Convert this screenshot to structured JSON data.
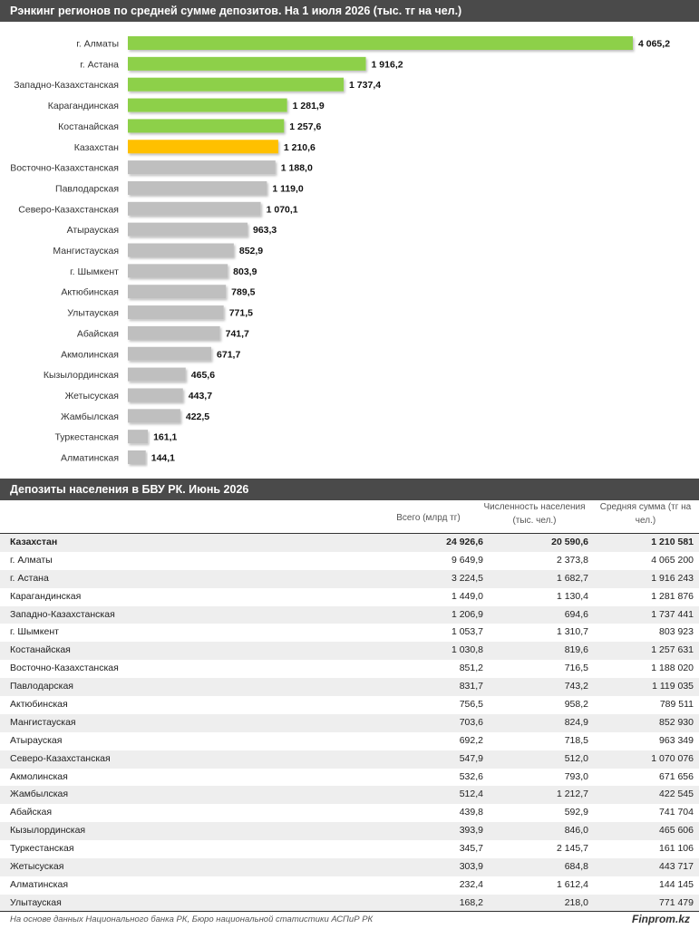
{
  "chart_title": "Рэнкинг регионов по средней сумме депозитов. На 1 июля 2026 (тыс. тг на чел.)",
  "chart_data": {
    "type": "bar",
    "orientation": "horizontal",
    "title": "Рэнкинг регионов по средней сумме депозитов. На 1 июля 2026 (тыс. тг на чел.)",
    "categories": [
      "г. Алматы",
      "г. Астана",
      "Западно-Казахстанская",
      "Карагандинская",
      "Костанайская",
      "Казахстан",
      "Восточно-Казахстанская",
      "Павлодарская",
      "Северо-Казахстанская",
      "Атырауская",
      "Мангистауская",
      "г. Шымкент",
      "Актюбинская",
      "Улытауская",
      "Абайская",
      "Акмолинская",
      "Кызылординская",
      "Жетысуская",
      "Жамбылская",
      "Туркестанская",
      "Алматинская"
    ],
    "values": [
      4065.2,
      1916.2,
      1737.4,
      1281.9,
      1257.6,
      1210.6,
      1188.0,
      1119.0,
      1070.1,
      963.3,
      852.9,
      803.9,
      789.5,
      771.5,
      741.7,
      671.7,
      465.6,
      443.7,
      422.5,
      161.1,
      144.1
    ],
    "value_labels": [
      "4 065,2",
      "1 916,2",
      "1 737,4",
      "1 281,9",
      "1 257,6",
      "1 210,6",
      "1 188,0",
      "1 119,0",
      "1 070,1",
      "963,3",
      "852,9",
      "803,9",
      "789,5",
      "771,5",
      "741,7",
      "671,7",
      "465,6",
      "443,7",
      "422,5",
      "161,1",
      "144,1"
    ],
    "bar_colors": [
      "#8dd04a",
      "#8dd04a",
      "#8dd04a",
      "#8dd04a",
      "#8dd04a",
      "#ffc000",
      "#bfbfbf",
      "#bfbfbf",
      "#bfbfbf",
      "#bfbfbf",
      "#bfbfbf",
      "#bfbfbf",
      "#bfbfbf",
      "#bfbfbf",
      "#bfbfbf",
      "#bfbfbf",
      "#bfbfbf",
      "#bfbfbf",
      "#bfbfbf",
      "#bfbfbf",
      "#bfbfbf"
    ],
    "xlim": [
      0,
      4065.2
    ],
    "grid": false,
    "legend": "none"
  },
  "table": {
    "title": "Депозиты населения в БВУ РК. Июнь 2026",
    "columns": [
      "Всего (млрд тг)",
      "Численность населения (тыс. чел.)",
      "Средняя сумма (тг на чел.)"
    ],
    "rows": [
      {
        "name": "Казахстан",
        "total": "24 926,6",
        "pop": "20 590,6",
        "avg": "1 210 581"
      },
      {
        "name": "г. Алматы",
        "total": "9 649,9",
        "pop": "2 373,8",
        "avg": "4 065 200"
      },
      {
        "name": "г. Астана",
        "total": "3 224,5",
        "pop": "1 682,7",
        "avg": "1 916 243"
      },
      {
        "name": "Карагандинская",
        "total": "1 449,0",
        "pop": "1 130,4",
        "avg": "1 281 876"
      },
      {
        "name": "Западно-Казахстанская",
        "total": "1 206,9",
        "pop": "694,6",
        "avg": "1 737 441"
      },
      {
        "name": "г. Шымкент",
        "total": "1 053,7",
        "pop": "1 310,7",
        "avg": "803 923"
      },
      {
        "name": "Костанайская",
        "total": "1 030,8",
        "pop": "819,6",
        "avg": "1 257 631"
      },
      {
        "name": "Восточно-Казахстанская",
        "total": "851,2",
        "pop": "716,5",
        "avg": "1 188 020"
      },
      {
        "name": "Павлодарская",
        "total": "831,7",
        "pop": "743,2",
        "avg": "1 119 035"
      },
      {
        "name": "Актюбинская",
        "total": "756,5",
        "pop": "958,2",
        "avg": "789 511"
      },
      {
        "name": "Мангистауская",
        "total": "703,6",
        "pop": "824,9",
        "avg": "852 930"
      },
      {
        "name": "Атырауская",
        "total": "692,2",
        "pop": "718,5",
        "avg": "963 349"
      },
      {
        "name": "Северо-Казахстанская",
        "total": "547,9",
        "pop": "512,0",
        "avg": "1 070 076"
      },
      {
        "name": "Акмолинская",
        "total": "532,6",
        "pop": "793,0",
        "avg": "671 656"
      },
      {
        "name": "Жамбылская",
        "total": "512,4",
        "pop": "1 212,7",
        "avg": "422 545"
      },
      {
        "name": "Абайская",
        "total": "439,8",
        "pop": "592,9",
        "avg": "741 704"
      },
      {
        "name": "Кызылординская",
        "total": "393,9",
        "pop": "846,0",
        "avg": "465 606"
      },
      {
        "name": "Туркестанская",
        "total": "345,7",
        "pop": "2 145,7",
        "avg": "161 106"
      },
      {
        "name": "Жетысуская",
        "total": "303,9",
        "pop": "684,8",
        "avg": "443 717"
      },
      {
        "name": "Алматинская",
        "total": "232,4",
        "pop": "1 612,4",
        "avg": "144 145"
      },
      {
        "name": "Улытауская",
        "total": "168,2",
        "pop": "218,0",
        "avg": "771 479"
      }
    ]
  },
  "footer": {
    "source": "На основе данных Национального банка РК, Бюро национальной статистики АСПиР РК",
    "brand": "Finprom.kz"
  }
}
